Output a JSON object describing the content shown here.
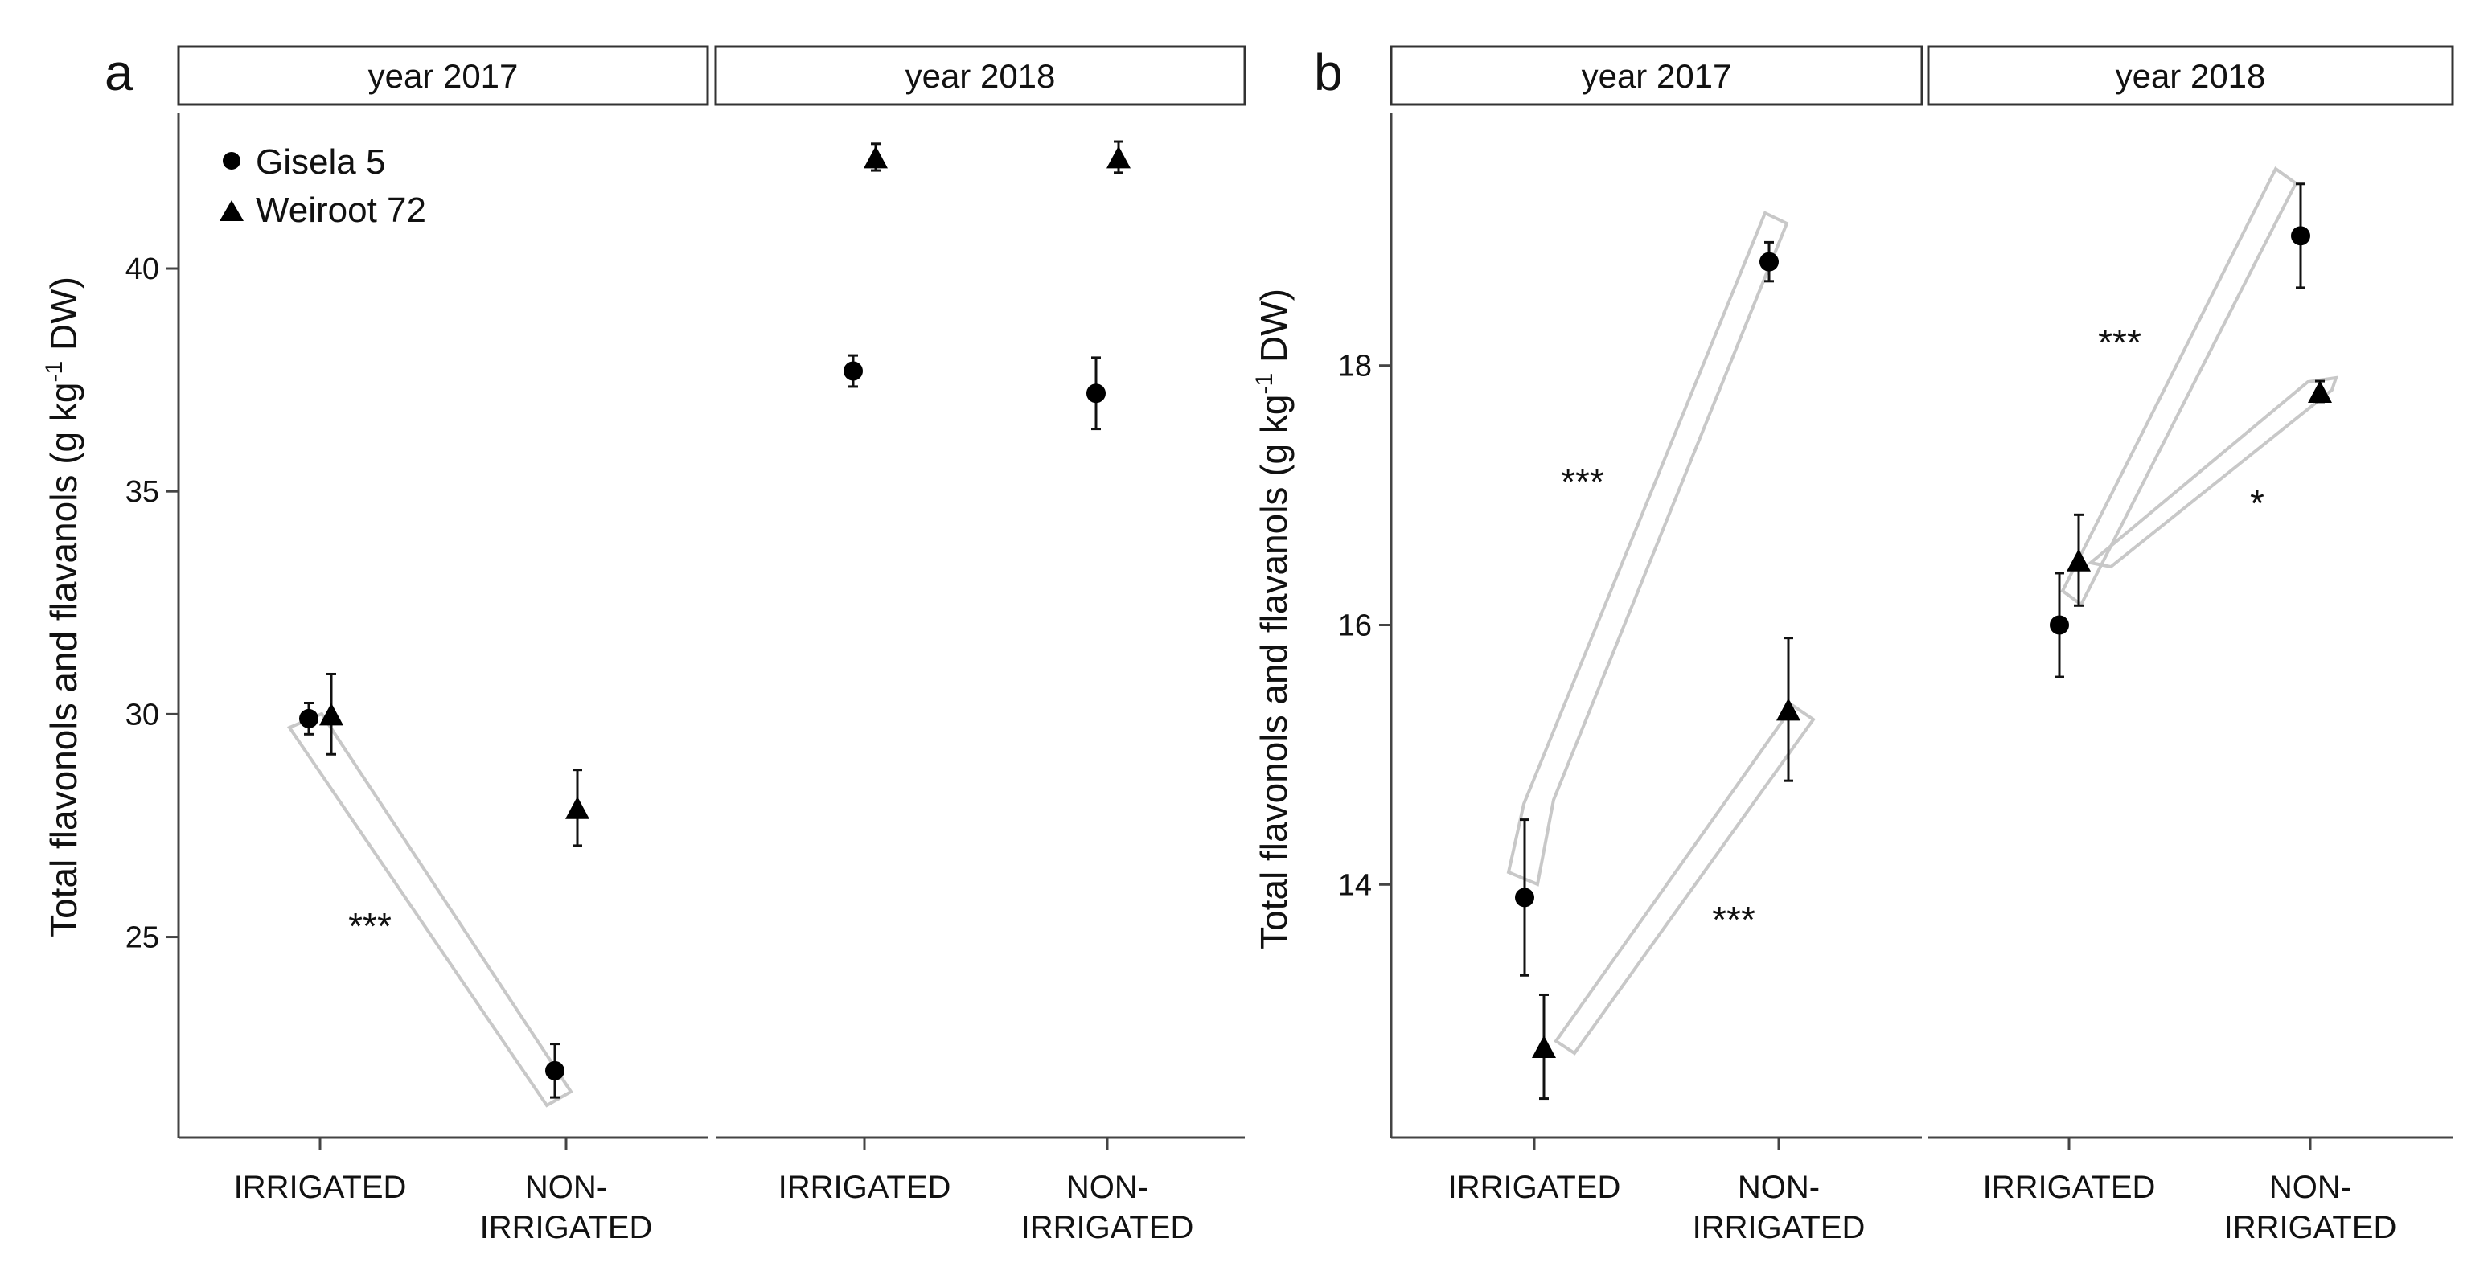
{
  "chart_data": [
    {
      "type": "scatter",
      "panel_label": "a",
      "ylabel": "Total flavonols and flavanols (g kg-1 DW)",
      "ylabel_parts": {
        "before": "Total flavonols and flavanols (g kg",
        "sup": "-1",
        "after": " DW)"
      },
      "ylim": [
        20.5,
        43.5
      ],
      "yticks": [
        25,
        30,
        35,
        40
      ],
      "facets": [
        "year 2017",
        "year 2018"
      ],
      "categories": [
        "IRRIGATED",
        "NON-IRRIGATED"
      ],
      "category_lines": [
        [
          "IRRIGATED"
        ],
        [
          "NON-",
          "IRRIGATED"
        ]
      ],
      "legend": {
        "position": "top-left",
        "entries": [
          "Gisela 5",
          "Weiroot 72"
        ]
      },
      "series": [
        {
          "name": "Gisela 5",
          "marker": "circle",
          "points": [
            {
              "facet": "year 2017",
              "category": "IRRIGATED",
              "y": 29.9,
              "err": 0.35
            },
            {
              "facet": "year 2017",
              "category": "NON-IRRIGATED",
              "y": 22.0,
              "err": 0.6
            },
            {
              "facet": "year 2018",
              "category": "IRRIGATED",
              "y": 37.7,
              "err": 0.35
            },
            {
              "facet": "year 2018",
              "category": "NON-IRRIGATED",
              "y": 37.2,
              "err": 0.8
            }
          ]
        },
        {
          "name": "Weiroot 72",
          "marker": "triangle",
          "points": [
            {
              "facet": "year 2017",
              "category": "IRRIGATED",
              "y": 30.0,
              "err": 0.9
            },
            {
              "facet": "year 2017",
              "category": "NON-IRRIGATED",
              "y": 27.9,
              "err": 0.85
            },
            {
              "facet": "year 2018",
              "category": "IRRIGATED",
              "y": 42.5,
              "err": 0.3
            },
            {
              "facet": "year 2018",
              "category": "NON-IRRIGATED",
              "y": 42.5,
              "err": 0.35
            }
          ]
        }
      ],
      "annotations": [
        {
          "text": "***",
          "facet": "year 2017",
          "between": [
            "IRRIGATED",
            "NON-IRRIGATED"
          ],
          "series": "Gisela 5"
        }
      ]
    },
    {
      "type": "scatter",
      "panel_label": "b",
      "ylabel": "Total flavonols and flavanols (g kg-1 DW)",
      "ylabel_parts": {
        "before": "Total flavonols and flavanols (g kg",
        "sup": "-1",
        "after": " DW)"
      },
      "ylim": [
        12.05,
        19.95
      ],
      "yticks": [
        14,
        16,
        18
      ],
      "facets": [
        "year 2017",
        "year 2018"
      ],
      "categories": [
        "IRRIGATED",
        "NON-IRRIGATED"
      ],
      "category_lines": [
        [
          "IRRIGATED"
        ],
        [
          "NON-",
          "IRRIGATED"
        ]
      ],
      "series": [
        {
          "name": "Gisela 5",
          "marker": "circle",
          "points": [
            {
              "facet": "year 2017",
              "category": "IRRIGATED",
              "y": 13.9,
              "err": 0.6
            },
            {
              "facet": "year 2017",
              "category": "NON-IRRIGATED",
              "y": 18.8,
              "err": 0.15
            },
            {
              "facet": "year 2018",
              "category": "IRRIGATED",
              "y": 16.0,
              "err": 0.4
            },
            {
              "facet": "year 2018",
              "category": "NON-IRRIGATED",
              "y": 19.0,
              "err": 0.4
            }
          ]
        },
        {
          "name": "Weiroot 72",
          "marker": "triangle",
          "points": [
            {
              "facet": "year 2017",
              "category": "IRRIGATED",
              "y": 12.75,
              "err": 0.4
            },
            {
              "facet": "year 2017",
              "category": "NON-IRRIGATED",
              "y": 15.35,
              "err": 0.55
            },
            {
              "facet": "year 2018",
              "category": "IRRIGATED",
              "y": 16.5,
              "err": 0.35
            },
            {
              "facet": "year 2018",
              "category": "NON-IRRIGATED",
              "y": 17.8,
              "err": 0.08
            }
          ]
        }
      ],
      "annotations": [
        {
          "text": "***",
          "facet": "year 2017",
          "between": [
            "IRRIGATED",
            "NON-IRRIGATED"
          ],
          "series": "Gisela 5"
        },
        {
          "text": "***",
          "facet": "year 2017",
          "between": [
            "IRRIGATED",
            "NON-IRRIGATED"
          ],
          "series": "Weiroot 72"
        },
        {
          "text": "***",
          "facet": "year 2018",
          "between": [
            "IRRIGATED",
            "NON-IRRIGATED"
          ],
          "series": "Gisela 5"
        },
        {
          "text": "*",
          "facet": "year 2018",
          "between": [
            "IRRIGATED",
            "NON-IRRIGATED"
          ],
          "series": "Weiroot 72"
        }
      ]
    }
  ]
}
